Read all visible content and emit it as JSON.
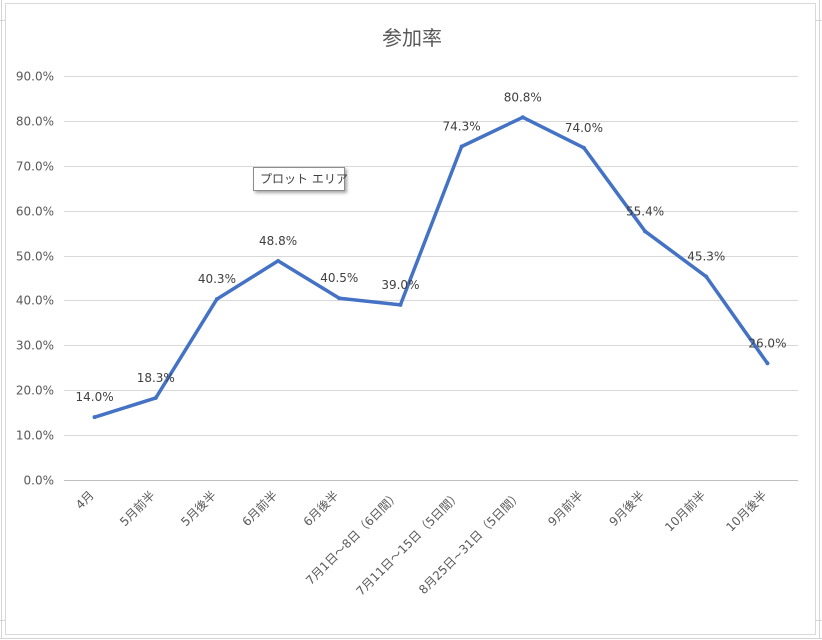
{
  "chart_data": {
    "type": "line",
    "title": "参加率",
    "categories": [
      "4月",
      "5月前半",
      "5月後半",
      "6月前半",
      "6月後半",
      "7月1日～8日（6日間）",
      "7月11日～15日（5日間）",
      "8月25日~31日（5日間）",
      "9月前半",
      "9月後半",
      "10月前半",
      "10月後半"
    ],
    "series": [
      {
        "values": [
          14.0,
          18.3,
          40.3,
          48.8,
          40.5,
          39.0,
          74.3,
          80.8,
          74.0,
          55.4,
          45.3,
          26.0
        ]
      }
    ],
    "data_labels": [
      "14.0%",
      "18.3%",
      "40.3%",
      "48.8%",
      "40.5%",
      "39.0%",
      "74.3%",
      "80.8%",
      "74.0%",
      "55.4%",
      "45.3%",
      "26.0%"
    ],
    "y_ticks": [
      "0.0%",
      "10.0%",
      "20.0%",
      "30.0%",
      "40.0%",
      "50.0%",
      "60.0%",
      "70.0%",
      "80.0%",
      "90.0%"
    ],
    "ylim": [
      0,
      90
    ],
    "grid": true,
    "legend": "none",
    "line_color": "#4472c4"
  },
  "tooltip_text": "プロット エリア"
}
